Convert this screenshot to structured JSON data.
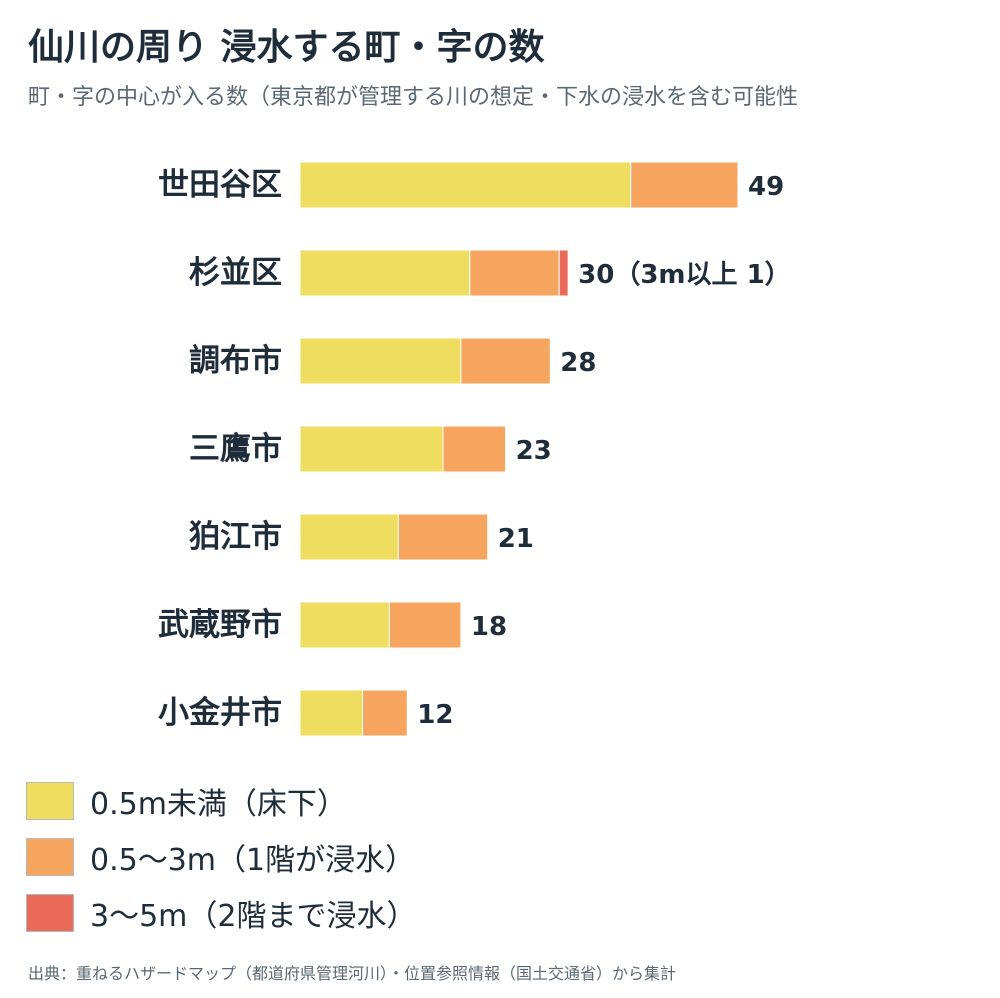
{
  "title": "仙川の周り 浸水する町・字の数",
  "subtitle": "町・字の中心が入る数（東京都が管理する川の想定・下水の浸水を含む可能性",
  "source": "出典：重ねるハザードマップ（都道府県管理河川）・位置参照情報（国土交通省）から集計",
  "colors": {
    "under_0_5m": "#eedd5e",
    "from_0_5_to_3m": "#f5a55e",
    "from_3_to_5m": "#ea6a5a"
  },
  "legend": [
    {
      "label": "0.5m未満（床下）",
      "color": "#eedd5e"
    },
    {
      "label": "0.5〜3m（1階が浸水）",
      "color": "#f5a55e"
    },
    {
      "label": "3〜5m（2階まで浸水）",
      "color": "#ea6a5a"
    }
  ],
  "chart_data": {
    "type": "bar",
    "orientation": "horizontal",
    "stacked": true,
    "categories": [
      "世田谷区",
      "杉並区",
      "調布市",
      "三鷹市",
      "狛江市",
      "武蔵野市",
      "小金井市"
    ],
    "series": [
      {
        "name": "0.5m未満（床下）",
        "color": "#eedd5e",
        "values": [
          37,
          19,
          18,
          16,
          11,
          10,
          7
        ]
      },
      {
        "name": "0.5〜3m（1階が浸水）",
        "color": "#f5a55e",
        "values": [
          12,
          10,
          10,
          7,
          10,
          8,
          5
        ]
      },
      {
        "name": "3〜5m（2階まで浸水）",
        "color": "#ea6a5a",
        "values": [
          0,
          1,
          0,
          0,
          0,
          0,
          0
        ]
      }
    ],
    "totals": [
      49,
      30,
      28,
      23,
      21,
      18,
      12
    ],
    "total_labels": [
      "49",
      "30（3m以上 1）",
      "28",
      "23",
      "21",
      "18",
      "12"
    ],
    "xlim": [
      0,
      49
    ],
    "grid": false,
    "legend_position": "bottom-left"
  }
}
